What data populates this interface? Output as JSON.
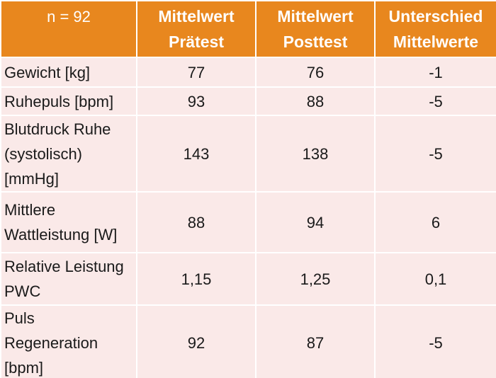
{
  "table": {
    "headers": [
      "n = 92",
      "Mittelwert\nPrätest",
      "Mittelwert\nPosttest",
      "Unterschied\nMittelwerte"
    ],
    "rows": [
      {
        "label": "Gewicht [kg]",
        "pre": "77",
        "post": "76",
        "diff": "-1"
      },
      {
        "label": "Ruhepuls [bpm]",
        "pre": "93",
        "post": "88",
        "diff": "-5"
      },
      {
        "label": "Blutdruck Ruhe\n(systolisch)\n[mmHg]",
        "pre": "143",
        "post": "138",
        "diff": "-5"
      },
      {
        "label": "Mittlere\nWattleistung [W]",
        "pre": "88",
        "post": "94",
        "diff": "6"
      },
      {
        "label": "Relative Leistung\nPWC",
        "pre": "1,15",
        "post": "1,25",
        "diff": "0,1"
      },
      {
        "label": "Puls\nRegeneration\n[bpm]",
        "pre": "92",
        "post": "87",
        "diff": "-5"
      }
    ]
  }
}
